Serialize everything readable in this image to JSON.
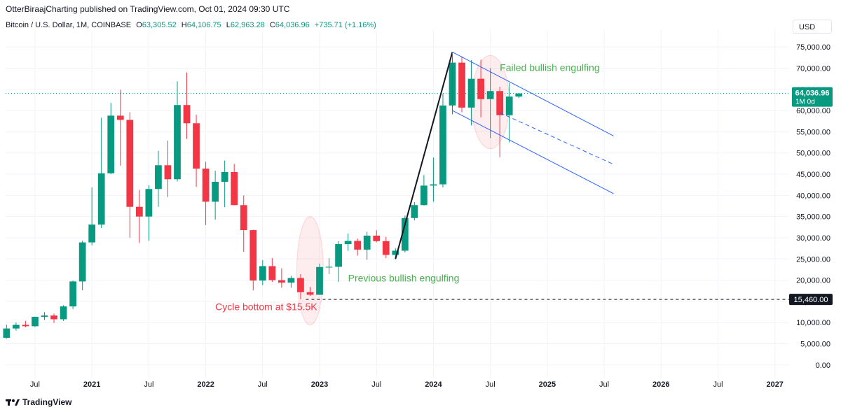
{
  "header": {
    "author": "OtterBiraajCharting",
    "published": "published on TradingView.com, Oct 01, 2024 09:30 UTC"
  },
  "legend": {
    "symbol": "Bitcoin / U.S. Dollar, 1M, COINBASE",
    "o_label": "O",
    "o_value": "63,305.52",
    "h_label": "H",
    "h_value": "64,106.75",
    "l_label": "L",
    "l_value": "62,963.28",
    "c_label": "C",
    "c_value": "64,036.96",
    "change": "+735.71 (+1.16%)"
  },
  "currency_button": "USD",
  "footer": {
    "brand": "TradingView",
    "logo_icon": "tradingview-logo-icon"
  },
  "colors": {
    "up": "#089981",
    "down": "#f23645",
    "channel": "#2962ff",
    "annotation_green": "#4caf50",
    "annotation_red": "#f23645"
  },
  "chart_data": {
    "type": "candlestick",
    "y_scale": "linear",
    "ylim": [
      -2500,
      77500
    ],
    "y_ticks": [
      0,
      5000,
      10000,
      15000,
      20000,
      25000,
      30000,
      35000,
      40000,
      45000,
      50000,
      55000,
      60000,
      65000,
      70000,
      75000
    ],
    "y_tick_labels": [
      "0.00",
      "5,000.00",
      "10,000.00",
      "15,000.00",
      "20,000.00",
      "25,000.00",
      "30,000.00",
      "35,000.00",
      "40,000.00",
      "45,000.00",
      "50,000.00",
      "55,000.00",
      "60,000.00",
      "65,000.00",
      "70,000.00",
      "75,000.00"
    ],
    "x_ticks": [
      {
        "date": "2020-07",
        "label": "Jul",
        "bold": false
      },
      {
        "date": "2021-01",
        "label": "2021",
        "bold": true
      },
      {
        "date": "2021-07",
        "label": "Jul",
        "bold": false
      },
      {
        "date": "2022-01",
        "label": "2022",
        "bold": true
      },
      {
        "date": "2022-07",
        "label": "Jul",
        "bold": false
      },
      {
        "date": "2023-01",
        "label": "2023",
        "bold": true
      },
      {
        "date": "2023-07",
        "label": "Jul",
        "bold": false
      },
      {
        "date": "2024-01",
        "label": "2024",
        "bold": true
      },
      {
        "date": "2024-07",
        "label": "Jul",
        "bold": false
      },
      {
        "date": "2025-01",
        "label": "2025",
        "bold": true
      },
      {
        "date": "2025-07",
        "label": "Jul",
        "bold": false
      },
      {
        "date": "2026-01",
        "label": "2026",
        "bold": true
      },
      {
        "date": "2026-07",
        "label": "Jul",
        "bold": false
      },
      {
        "date": "2027-01",
        "label": "2027",
        "bold": true
      }
    ],
    "x_range": [
      "2020-04",
      "2027-02"
    ],
    "grid": true,
    "candles": [
      {
        "t": "2020-04",
        "o": 6400,
        "h": 9500,
        "l": 6200,
        "c": 8600
      },
      {
        "t": "2020-05",
        "o": 8600,
        "h": 10000,
        "l": 8100,
        "c": 9450
      },
      {
        "t": "2020-06",
        "o": 9450,
        "h": 10400,
        "l": 8900,
        "c": 9140
      },
      {
        "t": "2020-07",
        "o": 9140,
        "h": 11400,
        "l": 8950,
        "c": 11350
      },
      {
        "t": "2020-08",
        "o": 11350,
        "h": 12450,
        "l": 10600,
        "c": 11650
      },
      {
        "t": "2020-09",
        "o": 11650,
        "h": 12100,
        "l": 9900,
        "c": 10780
      },
      {
        "t": "2020-10",
        "o": 10780,
        "h": 14100,
        "l": 10400,
        "c": 13800
      },
      {
        "t": "2020-11",
        "o": 13800,
        "h": 19900,
        "l": 13200,
        "c": 19700
      },
      {
        "t": "2020-12",
        "o": 19700,
        "h": 29300,
        "l": 17600,
        "c": 28900
      },
      {
        "t": "2021-01",
        "o": 28900,
        "h": 41900,
        "l": 28200,
        "c": 33100
      },
      {
        "t": "2021-02",
        "o": 33100,
        "h": 58300,
        "l": 32300,
        "c": 45200
      },
      {
        "t": "2021-03",
        "o": 45200,
        "h": 61800,
        "l": 45000,
        "c": 58800
      },
      {
        "t": "2021-04",
        "o": 58800,
        "h": 64900,
        "l": 47000,
        "c": 57800
      },
      {
        "t": "2021-05",
        "o": 57800,
        "h": 59600,
        "l": 30000,
        "c": 37300
      },
      {
        "t": "2021-06",
        "o": 37300,
        "h": 41300,
        "l": 28800,
        "c": 35000
      },
      {
        "t": "2021-07",
        "o": 35000,
        "h": 42400,
        "l": 29300,
        "c": 41500
      },
      {
        "t": "2021-08",
        "o": 41500,
        "h": 50500,
        "l": 37300,
        "c": 47100
      },
      {
        "t": "2021-09",
        "o": 47100,
        "h": 52900,
        "l": 39600,
        "c": 43800
      },
      {
        "t": "2021-10",
        "o": 43800,
        "h": 66900,
        "l": 43300,
        "c": 61300
      },
      {
        "t": "2021-11",
        "o": 61300,
        "h": 69000,
        "l": 53300,
        "c": 57000
      },
      {
        "t": "2021-12",
        "o": 57000,
        "h": 59000,
        "l": 42000,
        "c": 46300
      },
      {
        "t": "2022-01",
        "o": 46300,
        "h": 47900,
        "l": 33000,
        "c": 38500
      },
      {
        "t": "2022-02",
        "o": 38500,
        "h": 45800,
        "l": 34300,
        "c": 43200
      },
      {
        "t": "2022-03",
        "o": 43200,
        "h": 48200,
        "l": 37200,
        "c": 45500
      },
      {
        "t": "2022-04",
        "o": 45500,
        "h": 47400,
        "l": 37700,
        "c": 37700
      },
      {
        "t": "2022-05",
        "o": 37700,
        "h": 40000,
        "l": 26700,
        "c": 31800
      },
      {
        "t": "2022-06",
        "o": 31800,
        "h": 31900,
        "l": 17600,
        "c": 19900
      },
      {
        "t": "2022-07",
        "o": 19900,
        "h": 24700,
        "l": 18800,
        "c": 23300
      },
      {
        "t": "2022-08",
        "o": 23300,
        "h": 25200,
        "l": 19600,
        "c": 20000
      },
      {
        "t": "2022-09",
        "o": 20000,
        "h": 22800,
        "l": 18200,
        "c": 19400
      },
      {
        "t": "2022-10",
        "o": 19400,
        "h": 21000,
        "l": 18200,
        "c": 20500
      },
      {
        "t": "2022-11",
        "o": 20500,
        "h": 21400,
        "l": 15500,
        "c": 17150
      },
      {
        "t": "2022-12",
        "o": 17150,
        "h": 18400,
        "l": 16300,
        "c": 16550
      },
      {
        "t": "2023-01",
        "o": 16550,
        "h": 23900,
        "l": 16500,
        "c": 23100
      },
      {
        "t": "2023-02",
        "o": 23100,
        "h": 25200,
        "l": 21400,
        "c": 23150
      },
      {
        "t": "2023-03",
        "o": 23150,
        "h": 29200,
        "l": 19600,
        "c": 28500
      },
      {
        "t": "2023-04",
        "o": 28500,
        "h": 31000,
        "l": 26900,
        "c": 29250
      },
      {
        "t": "2023-05",
        "o": 29250,
        "h": 29800,
        "l": 25800,
        "c": 27200
      },
      {
        "t": "2023-06",
        "o": 27200,
        "h": 31400,
        "l": 24800,
        "c": 30500
      },
      {
        "t": "2023-07",
        "o": 30500,
        "h": 31800,
        "l": 28900,
        "c": 29200
      },
      {
        "t": "2023-08",
        "o": 29200,
        "h": 30200,
        "l": 25200,
        "c": 25950
      },
      {
        "t": "2023-09",
        "o": 25950,
        "h": 27500,
        "l": 24900,
        "c": 26950
      },
      {
        "t": "2023-10",
        "o": 26950,
        "h": 35200,
        "l": 26550,
        "c": 34650
      },
      {
        "t": "2023-11",
        "o": 34650,
        "h": 38400,
        "l": 34100,
        "c": 37700
      },
      {
        "t": "2023-12",
        "o": 37700,
        "h": 44800,
        "l": 37600,
        "c": 42300
      },
      {
        "t": "2024-01",
        "o": 42300,
        "h": 48900,
        "l": 38500,
        "c": 42600
      },
      {
        "t": "2024-02",
        "o": 42600,
        "h": 64000,
        "l": 41900,
        "c": 61200
      },
      {
        "t": "2024-03",
        "o": 61200,
        "h": 73800,
        "l": 59100,
        "c": 71300
      },
      {
        "t": "2024-04",
        "o": 71300,
        "h": 72800,
        "l": 59600,
        "c": 60700
      },
      {
        "t": "2024-05",
        "o": 60700,
        "h": 71900,
        "l": 56500,
        "c": 67500
      },
      {
        "t": "2024-06",
        "o": 67500,
        "h": 72000,
        "l": 58400,
        "c": 62700
      },
      {
        "t": "2024-07",
        "o": 62700,
        "h": 70000,
        "l": 53500,
        "c": 64600
      },
      {
        "t": "2024-08",
        "o": 64600,
        "h": 65600,
        "l": 49000,
        "c": 58900
      },
      {
        "t": "2024-09",
        "o": 58900,
        "h": 66500,
        "l": 52500,
        "c": 63300
      },
      {
        "t": "2024-10",
        "o": 63305.52,
        "h": 64106.75,
        "l": 62963.28,
        "c": 64036.96
      }
    ],
    "last_price": {
      "value": 64036.96,
      "label": "64,036.96",
      "sublabel": "1M 0d"
    },
    "support_level": {
      "value": 15460,
      "label": "15,460.00",
      "from": "2022-12"
    },
    "trend_line": {
      "from": {
        "t": "2023-09",
        "v": 25000
      },
      "to": {
        "t": "2024-03",
        "v": 73800
      }
    },
    "channel": {
      "upper": {
        "from": {
          "t": "2024-03",
          "v": 73800
        },
        "to": {
          "t": "2025-08",
          "v": 54000
        }
      },
      "middle": {
        "from": {
          "t": "2024-08",
          "v": 59500
        },
        "to": {
          "t": "2025-08",
          "v": 47300
        }
      },
      "lower": {
        "from": {
          "t": "2024-03",
          "v": 60000
        },
        "to": {
          "t": "2025-08",
          "v": 40400
        }
      }
    },
    "highlight_ellipses": [
      {
        "center": {
          "t": "2022-12",
          "v": 22200
        },
        "rx_months": 1.4,
        "ry_value": 12800
      },
      {
        "center": {
          "t": "2024-07",
          "v": 62000
        },
        "rx_months": 2.0,
        "ry_value": 11000
      }
    ],
    "annotations": [
      {
        "text": "Failed bullish engulfing",
        "t": "2024-08",
        "v": 69300,
        "color": "#4caf50"
      },
      {
        "text": "Previous bullish engulfing",
        "t": "2023-04",
        "v": 19700,
        "color": "#4caf50"
      },
      {
        "text": "Cycle bottom at $15.5K",
        "t": "2022-02",
        "v": 12900,
        "color": "#f23645"
      }
    ]
  }
}
